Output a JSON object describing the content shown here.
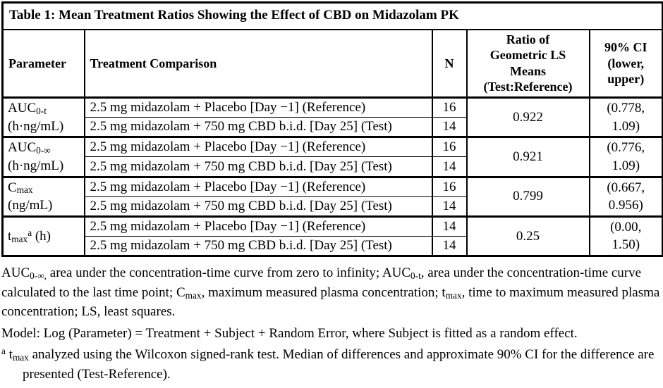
{
  "table": {
    "title": "Table 1: Mean Treatment Ratios Showing the Effect of CBD on Midazolam PK",
    "headers": {
      "parameter": "Parameter",
      "treatment": "Treatment Comparison",
      "n": "N",
      "ratio": [
        {
          "t": "Ratio of"
        },
        {
          "br": true
        },
        {
          "t": "Geometric LS"
        },
        {
          "br": true
        },
        {
          "t": "Means"
        },
        {
          "br": true
        },
        {
          "t": "(Test:Reference)"
        }
      ],
      "ci": [
        {
          "t": "90% CI"
        },
        {
          "br": true
        },
        {
          "t": "(lower,"
        },
        {
          "br": true
        },
        {
          "t": "upper)"
        }
      ]
    },
    "groups": [
      {
        "parameter": [
          {
            "t": "AUC"
          },
          {
            "t": "0-t",
            "s": "sub"
          },
          {
            "br": true
          },
          {
            "t": "(h·ng/mL)"
          }
        ],
        "reference": {
          "label": "2.5 mg midazolam + Placebo [Day −1] (Reference)",
          "n": "16"
        },
        "test": {
          "label": "2.5 mg midazolam + 750 mg CBD b.i.d. [Day 25] (Test)",
          "n": "14"
        },
        "ratio": "0.922",
        "ci": [
          {
            "t": "(0.778,"
          },
          {
            "br": true
          },
          {
            "t": "1.09)"
          }
        ]
      },
      {
        "parameter": [
          {
            "t": "AUC"
          },
          {
            "t": "0-∞",
            "s": "sub"
          },
          {
            "br": true
          },
          {
            "t": "(h·ng/mL)"
          }
        ],
        "reference": {
          "label": "2.5 mg midazolam + Placebo [Day −1] (Reference)",
          "n": "16"
        },
        "test": {
          "label": "2.5 mg midazolam + 750 mg CBD b.i.d. [Day 25] (Test)",
          "n": "14"
        },
        "ratio": "0.921",
        "ci": [
          {
            "t": "(0.776,"
          },
          {
            "br": true
          },
          {
            "t": "1.09)"
          }
        ]
      },
      {
        "parameter": [
          {
            "t": "C"
          },
          {
            "t": "max",
            "s": "sub"
          },
          {
            "br": true
          },
          {
            "t": "(ng/mL)"
          }
        ],
        "reference": {
          "label": "2.5 mg midazolam + Placebo [Day −1] (Reference)",
          "n": "16"
        },
        "test": {
          "label": "2.5 mg midazolam + 750 mg CBD b.i.d. [Day 25] (Test)",
          "n": "14"
        },
        "ratio": "0.799",
        "ci": [
          {
            "t": "(0.667,"
          },
          {
            "br": true
          },
          {
            "t": "0.956)"
          }
        ]
      },
      {
        "parameter": [
          {
            "t": "t"
          },
          {
            "t": "max",
            "s": "sub"
          },
          {
            "t": "a",
            "s": "sup"
          },
          {
            "t": " (h)"
          }
        ],
        "reference": {
          "label": "2.5 mg midazolam + Placebo [Day −1] (Reference)",
          "n": "14"
        },
        "test": {
          "label": "2.5 mg midazolam + 750 mg CBD b.i.d. [Day 25] (Test)",
          "n": "14"
        },
        "ratio": "0.25",
        "ci": [
          {
            "t": "(0.00,"
          },
          {
            "br": true
          },
          {
            "t": "1.50)"
          }
        ]
      }
    ]
  },
  "footnotes": {
    "abbreviations": [
      {
        "t": "AUC"
      },
      {
        "t": "0-∞,",
        "s": "sub"
      },
      {
        "t": " area under the concentration-time curve from zero to infinity; AUC"
      },
      {
        "t": "0-t",
        "s": "sub"
      },
      {
        "t": ", area under the concentration-time curve calculated to the last time point; C"
      },
      {
        "t": "max",
        "s": "sub"
      },
      {
        "t": ", maximum measured plasma concentration; t"
      },
      {
        "t": "max",
        "s": "sub"
      },
      {
        "t": ", time to maximum measured plasma concentration; LS, least squares."
      }
    ],
    "model": "Model: Log (Parameter) = Treatment + Subject + Random Error, where Subject is fitted as a random effect.",
    "tmax_note": [
      {
        "t": "a",
        "s": "sup"
      },
      {
        "t": " t"
      },
      {
        "t": "max",
        "s": "sub"
      },
      {
        "t": " analyzed using the Wilcoxon signed-rank test. Median of differences and approximate 90% CI for the difference are presented (Test-Reference)."
      }
    ]
  }
}
